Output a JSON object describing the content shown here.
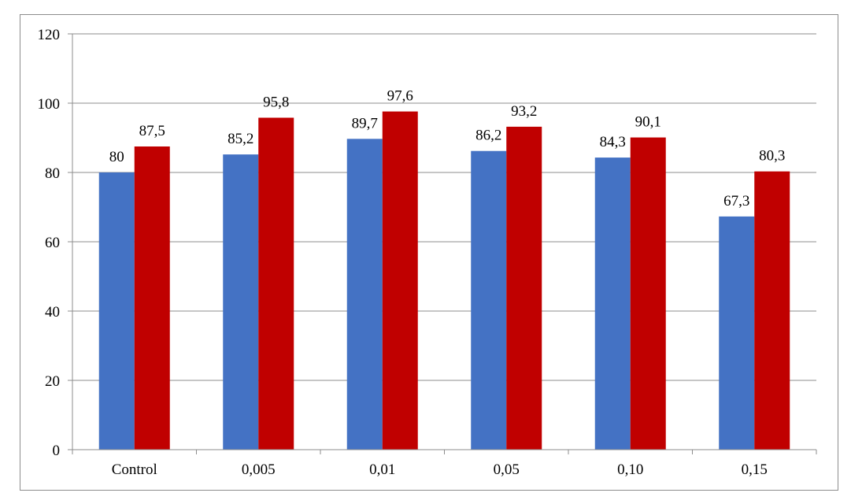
{
  "chart_data": {
    "type": "bar",
    "categories": [
      "Control",
      "0,005",
      "0,01",
      "0,05",
      "0,10",
      "0,15"
    ],
    "series": [
      {
        "values": [
          80,
          85.2,
          89.7,
          86.2,
          84.3,
          67.3
        ],
        "labels": [
          "80",
          "85,2",
          "89,7",
          "86,2",
          "84,3",
          "67,3"
        ],
        "color": "#4472C4"
      },
      {
        "values": [
          87.5,
          95.8,
          97.6,
          93.2,
          90.1,
          80.3
        ],
        "labels": [
          "87,5",
          "95,8",
          "97,6",
          "93,2",
          "90,1",
          "80,3"
        ],
        "color": "#C00000"
      }
    ],
    "yticks": [
      "0",
      "20",
      "40",
      "60",
      "80",
      "100",
      "120"
    ],
    "ylim": [
      0,
      120
    ],
    "grid": true,
    "legend": false,
    "title": "",
    "xlabel": "",
    "ylabel": ""
  }
}
